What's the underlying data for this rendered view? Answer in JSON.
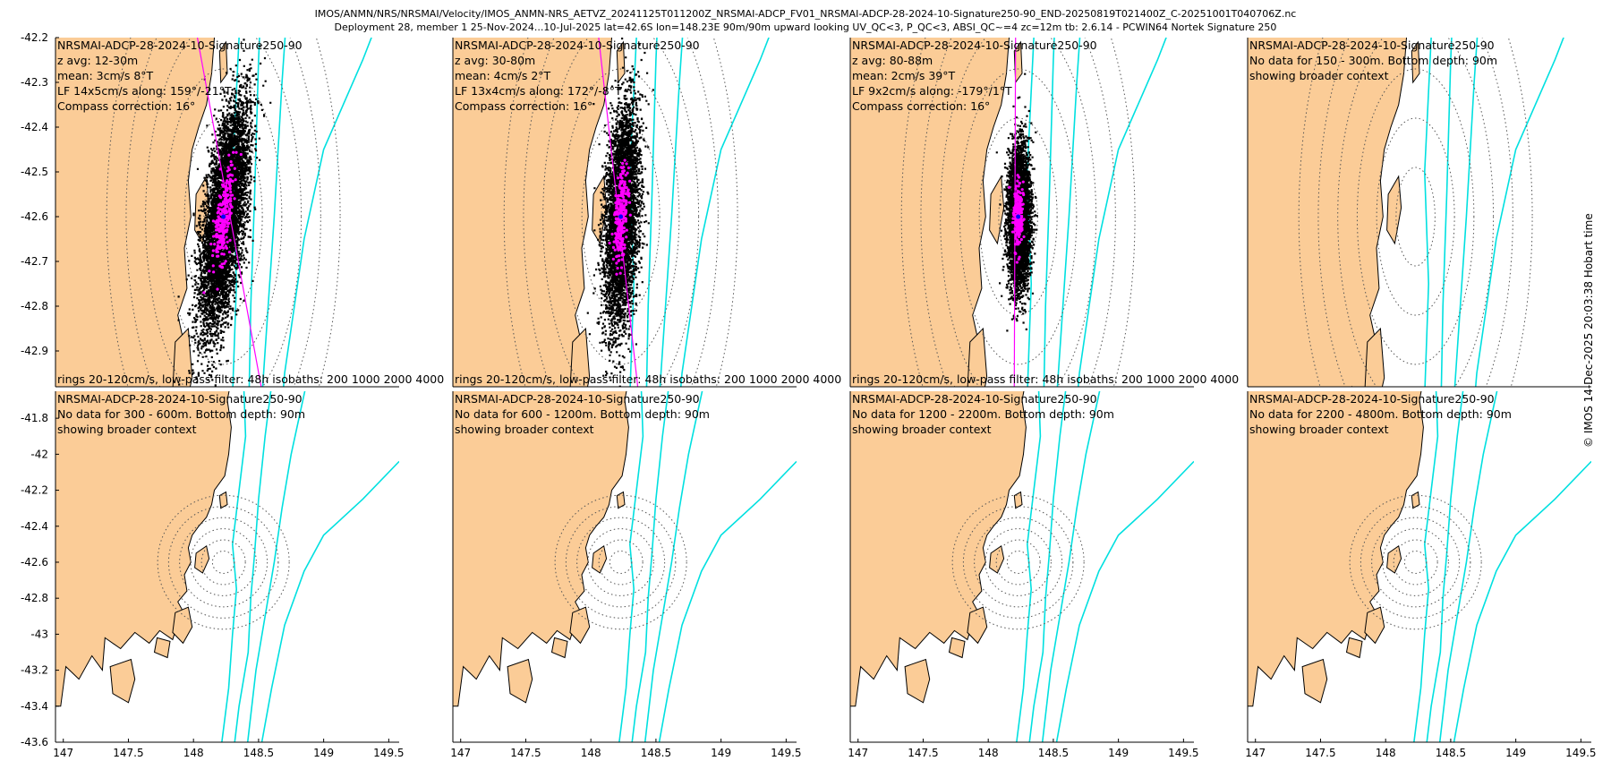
{
  "figure": {
    "title_line1": "IMOS/ANMN/NRS/NRSMAI/Velocity/IMOS_ANMN-NRS_AETVZ_20241125T011200Z_NRSMAI-ADCP_FV01_NRSMAI-ADCP-28-2024-10-Signature250-90_END-20250819T021400Z_C-20251001T040706Z.nc",
    "title_line2": "Deployment 28, member 1 25-Nov-2024...10-Jul-2025 lat=42.6S lon=148.23E 90m/90m upward looking UV_QC<3, P_QC<3, ABSI_QC~=4 zc=12m tb: 2.6.14 - PCWIN64 Nortek Signature 250",
    "timestamp": "© IMOS 14-Dec-2025 20:03:38 Hobart time",
    "colors": {
      "land": "#fbcc97",
      "coast": "#000000",
      "isobath": "#00e0e0",
      "rings": "#555555",
      "points": "#000000",
      "lowpass": "#ff00ff",
      "axis": "#000000"
    }
  },
  "chart_data": [
    {
      "type": "scatter",
      "panel": 0,
      "xlim": [
        146.94,
        149.58
      ],
      "ylim": [
        -42.98,
        -42.2
      ],
      "xticks": [],
      "yticks": [
        -42.2,
        -42.3,
        -42.4,
        -42.5,
        -42.6,
        -42.7,
        -42.8,
        -42.9
      ],
      "ytick_labels": [
        "-42.2",
        "-42.3",
        "-42.4",
        "-42.5",
        "-42.6",
        "-42.7",
        "-42.8",
        "-42.9"
      ],
      "text_lines": [
        "NRSMAI-ADCP-28-2024-10-Signature250-90",
        "z avg: 12-30m",
        "mean: 3cm/s 8°T",
        "LF 14x5cm/s along: 159°/-21°T",
        "Compass correction: 16°"
      ],
      "footer": "rings 20-120cm/s, low-pass filter: 48h isobaths: 200 1000 2000 4000",
      "has_data": true,
      "ring_center": [
        148.23,
        -42.6
      ],
      "ring_count": 6,
      "ellipse": {
        "cx": 148.23,
        "cy": -42.6,
        "sd_major": 0.13,
        "sd_minor": 0.05,
        "axis_angle_deg": 69
      },
      "lowpass_line": {
        "x1": 148.03,
        "y1": -42.2,
        "x2": 148.52,
        "y2": -42.98
      }
    },
    {
      "type": "scatter",
      "panel": 1,
      "xlim": [
        146.94,
        149.58
      ],
      "ylim": [
        -42.98,
        -42.2
      ],
      "xticks": [],
      "yticks": [],
      "text_lines": [
        "NRSMAI-ADCP-28-2024-10-Signature250-90",
        "z avg: 30-80m",
        "mean: 4cm/s 2°T",
        "LF 13x4cm/s along: 172°/-8°T",
        "Compass correction: 16°"
      ],
      "footer": "rings 20-120cm/s, low-pass filter: 48h isobaths: 200 1000 2000 4000",
      "has_data": true,
      "ring_center": [
        148.23,
        -42.6
      ],
      "ring_count": 6,
      "ellipse": {
        "cx": 148.23,
        "cy": -42.6,
        "sd_major": 0.12,
        "sd_minor": 0.045,
        "axis_angle_deg": 82
      },
      "lowpass_line": {
        "x1": 148.06,
        "y1": -42.2,
        "x2": 148.36,
        "y2": -42.98
      }
    },
    {
      "type": "scatter",
      "panel": 2,
      "xlim": [
        146.94,
        149.58
      ],
      "ylim": [
        -42.98,
        -42.2
      ],
      "xticks": [],
      "yticks": [],
      "text_lines": [
        "NRSMAI-ADCP-28-2024-10-Signature250-90",
        "z avg: 80-88m",
        "mean: 2cm/s 39°T",
        "LF 9x2cm/s along: -179°/1°T",
        "Compass correction: 16°"
      ],
      "footer": "rings 20-120cm/s, low-pass filter: 48h isobaths: 200 1000 2000 4000",
      "has_data": true,
      "ring_center": [
        148.23,
        -42.6
      ],
      "ring_count": 6,
      "ellipse": {
        "cx": 148.23,
        "cy": -42.6,
        "sd_major": 0.075,
        "sd_minor": 0.03,
        "axis_angle_deg": 89
      },
      "lowpass_line": {
        "x1": 148.21,
        "y1": -42.2,
        "x2": 148.2,
        "y2": -42.98
      }
    },
    {
      "type": "scatter",
      "panel": 3,
      "xlim": [
        146.94,
        149.58
      ],
      "ylim": [
        -42.98,
        -42.2
      ],
      "xticks": [],
      "yticks": [],
      "text_lines": [
        "NRSMAI-ADCP-28-2024-10-Signature250-90",
        "No data for 150 - 300m. Bottom depth: 90m",
        "showing broader context"
      ],
      "footer": "",
      "has_data": false,
      "ring_center": [
        148.23,
        -42.6
      ],
      "ring_count": 6
    },
    {
      "type": "scatter",
      "panel": 4,
      "xlim": [
        146.94,
        149.58
      ],
      "ylim": [
        -43.6,
        -41.65
      ],
      "xticks": [
        147,
        147.5,
        148,
        148.5,
        149,
        149.5
      ],
      "xtick_labels": [
        "147",
        "147.5",
        "148",
        "148.5",
        "149",
        "149.5"
      ],
      "yticks": [
        -41.8,
        -42,
        -42.2,
        -42.4,
        -42.6,
        -42.8,
        -43,
        -43.2,
        -43.4,
        -43.6
      ],
      "ytick_labels": [
        "-41.8",
        "-42",
        "-42.2",
        "-42.4",
        "-42.6",
        "-42.8",
        "-43",
        "-43.2",
        "-43.4",
        "-43.6"
      ],
      "text_lines": [
        "NRSMAI-ADCP-28-2024-10-Signature250-90",
        "No data for 300 - 600m. Bottom depth: 90m",
        "showing broader context"
      ],
      "footer": "",
      "has_data": false,
      "ring_center": [
        148.23,
        -42.6
      ],
      "ring_count": 6
    },
    {
      "type": "scatter",
      "panel": 5,
      "xlim": [
        146.94,
        149.58
      ],
      "ylim": [
        -43.6,
        -41.65
      ],
      "xticks": [
        147,
        147.5,
        148,
        148.5,
        149,
        149.5
      ],
      "xtick_labels": [
        "147",
        "147.5",
        "148",
        "148.5",
        "149",
        "149.5"
      ],
      "yticks": [],
      "text_lines": [
        "NRSMAI-ADCP-28-2024-10-Signature250-90",
        "No data for 600 - 1200m. Bottom depth: 90m",
        "showing broader context"
      ],
      "footer": "",
      "has_data": false,
      "ring_center": [
        148.23,
        -42.6
      ],
      "ring_count": 6
    },
    {
      "type": "scatter",
      "panel": 6,
      "xlim": [
        146.94,
        149.58
      ],
      "ylim": [
        -43.6,
        -41.65
      ],
      "xticks": [
        147,
        147.5,
        148,
        148.5,
        149,
        149.5
      ],
      "xtick_labels": [
        "147",
        "147.5",
        "148",
        "148.5",
        "149",
        "149.5"
      ],
      "yticks": [],
      "text_lines": [
        "NRSMAI-ADCP-28-2024-10-Signature250-90",
        "No data for 1200 - 2200m. Bottom depth: 90m",
        "showing broader context"
      ],
      "footer": "",
      "has_data": false,
      "ring_center": [
        148.23,
        -42.6
      ],
      "ring_count": 6
    },
    {
      "type": "scatter",
      "panel": 7,
      "xlim": [
        146.94,
        149.58
      ],
      "ylim": [
        -43.6,
        -41.65
      ],
      "xticks": [
        147,
        147.5,
        148,
        148.5,
        149,
        149.5
      ],
      "xtick_labels": [
        "147",
        "147.5",
        "148",
        "148.5",
        "149",
        "149.5"
      ],
      "yticks": [],
      "text_lines": [
        "NRSMAI-ADCP-28-2024-10-Signature250-90",
        "No data for 2200 - 4800m. Bottom depth: 90m",
        "showing broader context"
      ],
      "footer": "",
      "has_data": false,
      "ring_center": [
        148.23,
        -42.6
      ],
      "ring_count": 6
    }
  ]
}
